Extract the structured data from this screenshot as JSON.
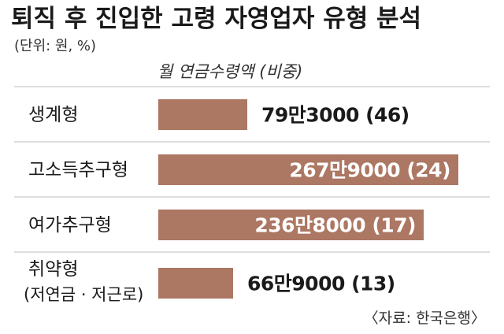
{
  "title": "퇴직 후 진입한 고령 자영업자 유형 분석",
  "unit_note": "(단위: 원, %)",
  "source": "〈자료: 한국은행〉",
  "colors": {
    "bar": "#ac7763",
    "divider": "#c9c9c9",
    "label_inside": "#ffffff",
    "label_outside": "#1a1a1a"
  },
  "chart_data": {
    "type": "bar",
    "orientation": "horizontal",
    "series_label": "월 연금수령액 (비중)",
    "categories": [
      [
        "생계형"
      ],
      [
        "고소득추구형"
      ],
      [
        "여가추구형"
      ],
      [
        "취약형",
        "(저연금 · 저근로)"
      ]
    ],
    "values": [
      793000,
      2679000,
      2368000,
      669000
    ],
    "shares": [
      46,
      24,
      17,
      13
    ],
    "value_labels": [
      "79만3000 (46)",
      "267만9000 (24)",
      "236만8000 (17)",
      "66만9000 (13)"
    ]
  }
}
